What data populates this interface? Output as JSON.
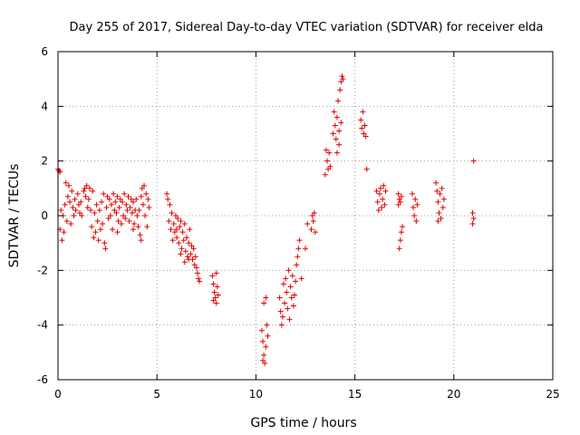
{
  "chart_data": {
    "type": "scatter",
    "title": "Day 255 of 2017, Sidereal Day-to-day VTEC variation (SDTVAR) for receiver elda",
    "xlabel": "GPS time / hours",
    "ylabel": "SDTVAR / TECUs",
    "xlim": [
      0,
      25
    ],
    "ylim": [
      -6,
      6
    ],
    "grid": true,
    "marker": "+",
    "color": "#e00000",
    "x_ticks": [
      0,
      5,
      10,
      15,
      20,
      25
    ],
    "x_tick_labels": [
      "0",
      "5",
      "10",
      "15",
      "20",
      "25"
    ],
    "y_ticks": [
      -6,
      -4,
      -2,
      0,
      2,
      4,
      6
    ],
    "y_tick_labels": [
      "-6",
      "-4",
      "-2",
      "0",
      "2",
      "4",
      "6"
    ],
    "series": [
      {
        "name": "SDTVAR",
        "points": [
          [
            0.0,
            1.7
          ],
          [
            0.05,
            1.65
          ],
          [
            0.1,
            1.6
          ],
          [
            0.1,
            -0.5
          ],
          [
            0.15,
            0.2
          ],
          [
            0.2,
            -0.9
          ],
          [
            0.25,
            0.0
          ],
          [
            0.3,
            -0.6
          ],
          [
            0.35,
            0.4
          ],
          [
            0.4,
            1.2
          ],
          [
            0.45,
            -0.2
          ],
          [
            0.5,
            0.7
          ],
          [
            0.55,
            1.1
          ],
          [
            0.6,
            0.5
          ],
          [
            0.65,
            -0.3
          ],
          [
            0.7,
            0.9
          ],
          [
            0.75,
            0.3
          ],
          [
            0.8,
            0.0
          ],
          [
            0.85,
            0.6
          ],
          [
            0.9,
            0.2
          ],
          [
            1.0,
            0.8
          ],
          [
            1.05,
            0.4
          ],
          [
            1.1,
            0.1
          ],
          [
            1.15,
            0.5
          ],
          [
            1.2,
            0.0
          ],
          [
            1.3,
            0.9
          ],
          [
            1.35,
            1.0
          ],
          [
            1.4,
            0.7
          ],
          [
            1.45,
            1.1
          ],
          [
            1.5,
            0.3
          ],
          [
            1.55,
            0.6
          ],
          [
            1.6,
            1.0
          ],
          [
            1.65,
            0.2
          ],
          [
            1.7,
            -0.4
          ],
          [
            1.75,
            0.9
          ],
          [
            1.8,
            -0.8
          ],
          [
            1.85,
            0.1
          ],
          [
            1.9,
            -0.6
          ],
          [
            1.95,
            0.4
          ],
          [
            2.0,
            -0.2
          ],
          [
            2.05,
            -0.9
          ],
          [
            2.1,
            0.2
          ],
          [
            2.15,
            -0.5
          ],
          [
            2.2,
            0.5
          ],
          [
            2.25,
            -0.3
          ],
          [
            2.3,
            0.8
          ],
          [
            2.35,
            -1.0
          ],
          [
            2.4,
            -1.2
          ],
          [
            2.45,
            0.3
          ],
          [
            2.5,
            0.7
          ],
          [
            2.55,
            -0.1
          ],
          [
            2.6,
            0.6
          ],
          [
            2.65,
            0.0
          ],
          [
            2.7,
            0.4
          ],
          [
            2.75,
            -0.5
          ],
          [
            2.8,
            0.8
          ],
          [
            2.85,
            0.2
          ],
          [
            2.9,
            0.5
          ],
          [
            2.95,
            0.1
          ],
          [
            3.0,
            0.7
          ],
          [
            3.05,
            -0.2
          ],
          [
            3.1,
            0.3
          ],
          [
            3.15,
            0.6
          ],
          [
            3.2,
            -0.3
          ],
          [
            3.25,
            0.5
          ],
          [
            3.3,
            0.0
          ],
          [
            3.35,
            0.8
          ],
          [
            3.4,
            -0.1
          ],
          [
            3.45,
            0.4
          ],
          [
            3.5,
            0.2
          ],
          [
            3.55,
            0.7
          ],
          [
            3.6,
            -0.2
          ],
          [
            3.65,
            0.3
          ],
          [
            3.7,
            0.6
          ],
          [
            3.75,
            0.1
          ],
          [
            3.8,
            0.5
          ],
          [
            3.85,
            -0.3
          ],
          [
            3.9,
            0.2
          ],
          [
            3.95,
            0.6
          ],
          [
            4.0,
            0.0
          ],
          [
            4.05,
            -0.4
          ],
          [
            4.1,
            0.2
          ],
          [
            4.15,
            -0.7
          ],
          [
            4.2,
            0.7
          ],
          [
            4.25,
            1.0
          ],
          [
            4.3,
            0.4
          ],
          [
            4.35,
            1.1
          ],
          [
            4.4,
            0.0
          ],
          [
            4.45,
            0.8
          ],
          [
            4.5,
            -0.4
          ],
          [
            4.55,
            0.6
          ],
          [
            4.6,
            0.3
          ],
          [
            4.2,
            -0.9
          ],
          [
            3.8,
            -0.5
          ],
          [
            3.0,
            -0.6
          ],
          [
            5.5,
            0.8
          ],
          [
            5.55,
            0.6
          ],
          [
            5.6,
            -0.2
          ],
          [
            5.65,
            0.4
          ],
          [
            5.7,
            -0.5
          ],
          [
            5.75,
            0.1
          ],
          [
            5.8,
            -0.9
          ],
          [
            5.85,
            -0.3
          ],
          [
            5.9,
            -0.6
          ],
          [
            5.95,
            0.0
          ],
          [
            6.0,
            -0.8
          ],
          [
            6.05,
            -0.1
          ],
          [
            6.1,
            -1.0
          ],
          [
            6.15,
            -0.4
          ],
          [
            6.2,
            -0.2
          ],
          [
            6.25,
            -1.2
          ],
          [
            6.3,
            -0.6
          ],
          [
            6.35,
            -0.9
          ],
          [
            6.4,
            -0.3
          ],
          [
            6.45,
            -1.3
          ],
          [
            6.5,
            -0.8
          ],
          [
            6.55,
            -1.5
          ],
          [
            6.6,
            -1.0
          ],
          [
            6.65,
            -0.5
          ],
          [
            6.7,
            -1.4
          ],
          [
            6.75,
            -1.1
          ],
          [
            6.8,
            -1.6
          ],
          [
            6.85,
            -1.2
          ],
          [
            6.9,
            -1.8
          ],
          [
            6.95,
            -1.5
          ],
          [
            7.0,
            -1.9
          ],
          [
            7.05,
            -2.1
          ],
          [
            7.1,
            -2.3
          ],
          [
            7.15,
            -2.4
          ],
          [
            6.2,
            -1.4
          ],
          [
            6.4,
            -1.7
          ],
          [
            6.6,
            -1.6
          ],
          [
            6.0,
            -0.5
          ],
          [
            7.8,
            -2.2
          ],
          [
            7.85,
            -2.5
          ],
          [
            7.9,
            -2.8
          ],
          [
            7.95,
            -3.0
          ],
          [
            8.0,
            -3.2
          ],
          [
            8.05,
            -2.6
          ],
          [
            8.1,
            -2.9
          ],
          [
            7.85,
            -3.1
          ],
          [
            8.0,
            -2.1
          ],
          [
            10.3,
            -4.2
          ],
          [
            10.35,
            -4.6
          ],
          [
            10.4,
            -5.1
          ],
          [
            10.45,
            -5.4
          ],
          [
            10.5,
            -4.8
          ],
          [
            10.55,
            -4.0
          ],
          [
            10.4,
            -3.2
          ],
          [
            10.5,
            -3.0
          ],
          [
            10.6,
            -4.4
          ],
          [
            10.35,
            -5.3
          ],
          [
            11.2,
            -3.0
          ],
          [
            11.25,
            -3.5
          ],
          [
            11.3,
            -4.0
          ],
          [
            11.35,
            -3.7
          ],
          [
            11.4,
            -2.5
          ],
          [
            11.45,
            -3.2
          ],
          [
            11.5,
            -2.3
          ],
          [
            11.55,
            -2.8
          ],
          [
            11.6,
            -3.4
          ],
          [
            11.65,
            -2.0
          ],
          [
            11.7,
            -3.8
          ],
          [
            11.75,
            -2.6
          ],
          [
            11.8,
            -3.0
          ],
          [
            11.85,
            -2.2
          ],
          [
            11.9,
            -3.3
          ],
          [
            11.95,
            -2.9
          ],
          [
            12.0,
            -2.4
          ],
          [
            12.05,
            -1.8
          ],
          [
            12.1,
            -1.5
          ],
          [
            12.15,
            -1.2
          ],
          [
            12.2,
            -0.9
          ],
          [
            12.5,
            -1.2
          ],
          [
            12.3,
            -2.3
          ],
          [
            12.6,
            -0.3
          ],
          [
            12.8,
            -0.5
          ],
          [
            12.85,
            0.0
          ],
          [
            12.9,
            -0.2
          ],
          [
            12.95,
            0.1
          ],
          [
            13.0,
            -0.6
          ],
          [
            13.5,
            1.5
          ],
          [
            13.55,
            2.4
          ],
          [
            13.6,
            2.0
          ],
          [
            13.65,
            1.7
          ],
          [
            13.7,
            2.3
          ],
          [
            13.75,
            1.8
          ],
          [
            13.9,
            3.0
          ],
          [
            13.95,
            3.8
          ],
          [
            14.0,
            3.3
          ],
          [
            14.05,
            2.8
          ],
          [
            14.1,
            3.6
          ],
          [
            14.15,
            4.2
          ],
          [
            14.2,
            3.1
          ],
          [
            14.25,
            4.6
          ],
          [
            14.3,
            4.9
          ],
          [
            14.35,
            5.1
          ],
          [
            14.4,
            5.0
          ],
          [
            14.2,
            2.6
          ],
          [
            14.1,
            2.3
          ],
          [
            14.3,
            3.4
          ],
          [
            15.3,
            3.5
          ],
          [
            15.35,
            3.2
          ],
          [
            15.4,
            3.8
          ],
          [
            15.45,
            3.0
          ],
          [
            15.5,
            3.3
          ],
          [
            15.55,
            2.9
          ],
          [
            15.6,
            1.7
          ],
          [
            16.1,
            0.9
          ],
          [
            16.15,
            0.5
          ],
          [
            16.2,
            0.2
          ],
          [
            16.25,
            0.8
          ],
          [
            16.3,
            1.0
          ],
          [
            16.35,
            0.3
          ],
          [
            16.4,
            0.6
          ],
          [
            16.45,
            1.1
          ],
          [
            16.5,
            0.4
          ],
          [
            16.55,
            0.9
          ],
          [
            17.2,
            0.8
          ],
          [
            17.25,
            0.6
          ],
          [
            17.3,
            0.5
          ],
          [
            17.35,
            0.7
          ],
          [
            17.4,
            -0.4
          ],
          [
            17.3,
            -0.9
          ],
          [
            17.25,
            -1.2
          ],
          [
            17.35,
            -0.6
          ],
          [
            17.2,
            0.4
          ],
          [
            17.9,
            0.8
          ],
          [
            17.95,
            0.3
          ],
          [
            18.0,
            0.0
          ],
          [
            18.05,
            0.6
          ],
          [
            18.1,
            -0.2
          ],
          [
            18.15,
            0.4
          ],
          [
            19.1,
            1.2
          ],
          [
            19.15,
            0.9
          ],
          [
            19.2,
            0.5
          ],
          [
            19.25,
            0.1
          ],
          [
            19.3,
            0.8
          ],
          [
            19.35,
            -0.1
          ],
          [
            19.4,
            1.0
          ],
          [
            19.45,
            0.3
          ],
          [
            19.5,
            0.6
          ],
          [
            19.2,
            -0.2
          ],
          [
            21.0,
            2.0
          ],
          [
            20.95,
            0.1
          ],
          [
            21.0,
            -0.1
          ],
          [
            20.95,
            -0.3
          ]
        ]
      }
    ]
  }
}
